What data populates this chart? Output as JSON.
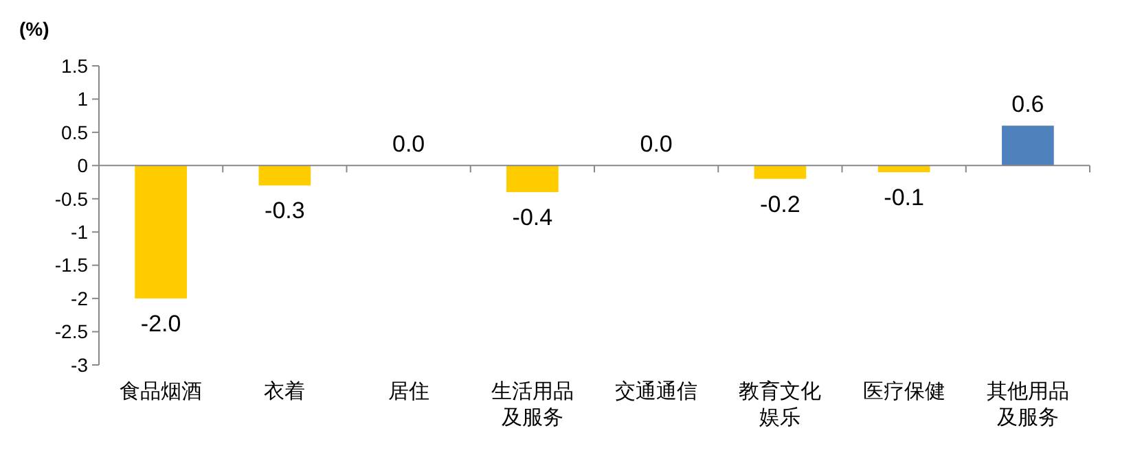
{
  "chart_data": {
    "type": "bar",
    "ylabel": "(%)",
    "categories": [
      "食品烟酒",
      "衣着",
      "居住",
      "生活用品及服务",
      "交通通信",
      "教育文化娱乐",
      "医疗保健",
      "其他用品及服务"
    ],
    "values": [
      -2.0,
      -0.3,
      0.0,
      -0.4,
      0.0,
      -0.2,
      -0.1,
      0.6
    ],
    "colors": [
      "#ffcc00",
      "#ffcc00",
      "#ffcc00",
      "#ffcc00",
      "#ffcc00",
      "#ffcc00",
      "#ffcc00",
      "#4f81bd"
    ],
    "value_labels": [
      "-2.0",
      "-0.3",
      "0.0",
      "-0.4",
      "0.0",
      "-0.2",
      "-0.1",
      "0.6"
    ],
    "ylim": [
      -3,
      1.5
    ],
    "yticks": [
      1.5,
      1,
      0.5,
      0,
      -0.5,
      -1,
      -1.5,
      -2,
      -2.5,
      -3
    ]
  }
}
